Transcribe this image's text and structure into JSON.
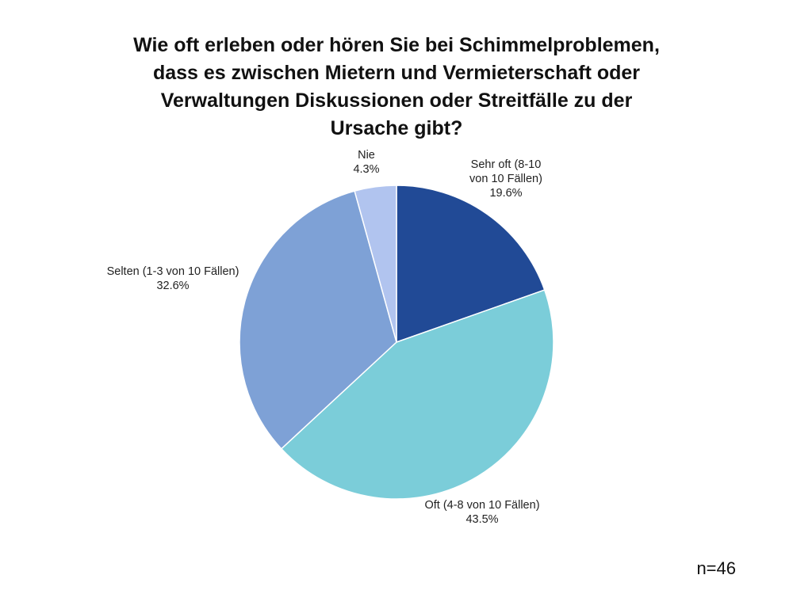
{
  "chart_data": {
    "type": "pie",
    "title_lines": [
      "Wie oft erleben oder hören Sie bei Schimmelproblemen,",
      "dass es zwischen Mietern und Vermieterschaft oder",
      "Verwaltungen Diskussionen oder Streitfälle zu der",
      "Ursache gibt?"
    ],
    "slices": [
      {
        "label_lines": [
          "Sehr oft (8-10",
          "von 10 Fällen)"
        ],
        "value": 19.6,
        "value_label": "19.6%",
        "color": "#214a96"
      },
      {
        "label_lines": [
          "Oft (4-8 von 10 Fällen)"
        ],
        "value": 43.5,
        "value_label": "43.5%",
        "color": "#7bcdd9"
      },
      {
        "label_lines": [
          "Selten (1-3 von 10 Fällen)"
        ],
        "value": 32.6,
        "value_label": "32.6%",
        "color": "#7ea1d6"
      },
      {
        "label_lines": [
          "Nie"
        ],
        "value": 4.3,
        "value_label": "4.3%",
        "color": "#b1c4ef"
      }
    ],
    "legend": "none",
    "start_angle": "12 o'clock",
    "direction": "clockwise"
  },
  "footer": {
    "sample_size": "n=46"
  }
}
